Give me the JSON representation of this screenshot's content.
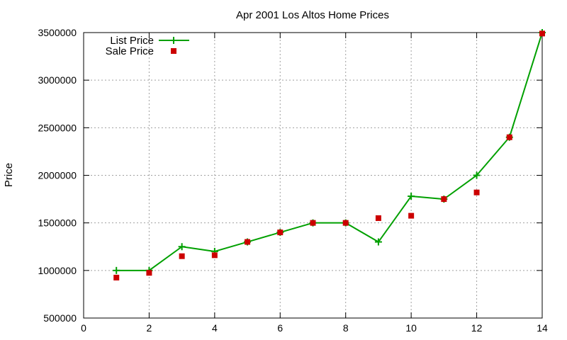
{
  "chart_data": {
    "type": "line",
    "title": "Apr 2001 Los Altos Home Prices",
    "xlabel": "",
    "ylabel": "Price",
    "xlim": [
      0,
      14
    ],
    "ylim": [
      500000,
      3500000
    ],
    "xticks": [
      "0",
      "2",
      "4",
      "6",
      "8",
      "10",
      "12",
      "14"
    ],
    "yticks": [
      "500000",
      "1000000",
      "1500000",
      "2000000",
      "2500000",
      "3000000",
      "3500000"
    ],
    "grid": true,
    "legend_position": "top-left",
    "series": [
      {
        "name": "List Price",
        "style": "linespoints",
        "marker": "plus",
        "color": "#00a000",
        "x": [
          1,
          2,
          3,
          4,
          5,
          6,
          7,
          8,
          9,
          10,
          11,
          12,
          13,
          14
        ],
        "y": [
          1000000,
          1000000,
          1250000,
          1200000,
          1300000,
          1400000,
          1500000,
          1500000,
          1300000,
          1780000,
          1750000,
          2000000,
          2400000,
          3500000
        ]
      },
      {
        "name": "Sale Price",
        "style": "points",
        "marker": "square",
        "color": "#cc0000",
        "x": [
          1,
          2,
          3,
          4,
          5,
          6,
          7,
          8,
          9,
          10,
          11,
          12,
          13,
          14
        ],
        "y": [
          925000,
          975000,
          1150000,
          1160000,
          1300000,
          1400000,
          1500000,
          1500000,
          1550000,
          1575000,
          1750000,
          1820000,
          2400000,
          3490000
        ]
      }
    ]
  }
}
